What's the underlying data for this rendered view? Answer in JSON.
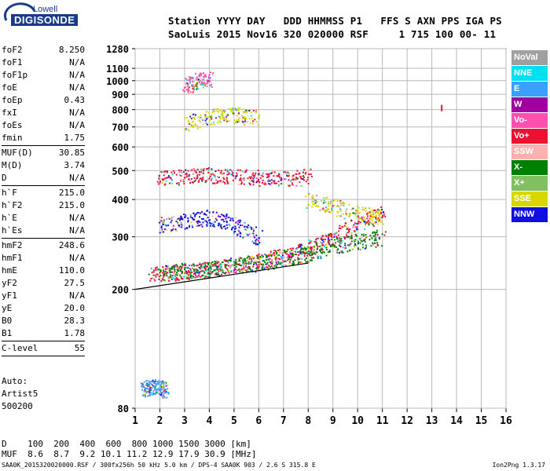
{
  "logo": {
    "top": "Lowell",
    "main": "DIGISONDE"
  },
  "header": {
    "line1": "Station YYYY DAY   DDD HHMMSS P1   FFS S AXN PPS IGA PS",
    "line2": "SaoLuis 2015 Nov16 320 020000 RSF     1 715 100 00- 11"
  },
  "params": [
    {
      "name": "foF2",
      "value": "8.250"
    },
    {
      "name": "foF1",
      "value": "N/A"
    },
    {
      "name": "foF1p",
      "value": "N/A"
    },
    {
      "name": "foE",
      "value": "N/A"
    },
    {
      "name": "foEp",
      "value": "0.43"
    },
    {
      "name": "fxI",
      "value": "N/A"
    },
    {
      "name": "foEs",
      "value": "N/A"
    },
    {
      "name": "fmin",
      "value": "1.75"
    },
    {
      "sep": true
    },
    {
      "name": "MUF(D)",
      "value": "30.85"
    },
    {
      "name": "M(D)",
      "value": "3.74"
    },
    {
      "name": "D",
      "value": "N/A"
    },
    {
      "sep": true
    },
    {
      "name": "h`F",
      "value": "215.0"
    },
    {
      "name": "h`F2",
      "value": "215.0"
    },
    {
      "name": "h`E",
      "value": "N/A"
    },
    {
      "name": "h`Es",
      "value": "N/A"
    },
    {
      "sep": true
    },
    {
      "name": "hmF2",
      "value": "248.6"
    },
    {
      "name": "hmF1",
      "value": "N/A"
    },
    {
      "name": "hmE",
      "value": "110.0"
    },
    {
      "name": "yF2",
      "value": "27.5"
    },
    {
      "name": "yF1",
      "value": "N/A"
    },
    {
      "name": "yE",
      "value": "20.0"
    },
    {
      "name": "B0",
      "value": "28.3"
    },
    {
      "name": "B1",
      "value": "1.78"
    },
    {
      "sep": true
    },
    {
      "name": "C-level",
      "value": "55"
    },
    {
      "sep": true
    }
  ],
  "auto": {
    "line1": "Auto:",
    "line2": "Artist5",
    "line3": "500200"
  },
  "bottom": {
    "d_line": "D    100  200  400  600  800 1000 1500 3000 [km]",
    "muf_line": "MUF  8.6  8.7  9.2 10.1 11.2 12.9 17.9 30.9 [MHz]",
    "file_line": "SAA0K_2015320020000.RSF / 300fx256h 50 kHz 5.0 km / DPS-4 SAA0K 903 / 2.6 S 315.8 E",
    "version": "Ion2Png 1.3.17"
  },
  "legend": [
    {
      "label": "NoVal",
      "color": "#a0a0a0"
    },
    {
      "label": "NNE",
      "color": "#00e0f0"
    },
    {
      "label": "E",
      "color": "#3aa0ff"
    },
    {
      "label": "W",
      "color": "#a000a0"
    },
    {
      "label": "Vo-",
      "color": "#ff50b0"
    },
    {
      "label": "Vo+",
      "color": "#ee1030"
    },
    {
      "label": "SSW",
      "color": "#ffb0b0"
    },
    {
      "label": "X-",
      "color": "#008000"
    },
    {
      "label": "X+",
      "color": "#80c060"
    },
    {
      "label": "SSE",
      "color": "#d8d800"
    },
    {
      "label": "NNW",
      "color": "#1010e0"
    }
  ],
  "chart_data": {
    "type": "scatter",
    "title": "",
    "xlabel": "",
    "ylabel": "",
    "x_ticks": [
      "1",
      "2",
      "3",
      "4",
      "5",
      "6",
      "7",
      "8",
      "9",
      "10",
      "11",
      "12",
      "13",
      "14",
      "15",
      "16"
    ],
    "y_ticks": [
      "80",
      "200",
      "300",
      "400",
      "500",
      "600",
      "700",
      "800",
      "900",
      "1000",
      "1100",
      "1280"
    ],
    "xlim": [
      1,
      16
    ],
    "ylim": [
      80,
      1280
    ],
    "y_scale": "log",
    "grid": true,
    "legend_position": "right",
    "clusters": [
      {
        "name": "F-trace O",
        "color": "#ee1030",
        "x": [
          1.6,
          2.5,
          3.5,
          4.5,
          5.5,
          6.5,
          7.5,
          8.2,
          9.0,
          10.0,
          11.0
        ],
        "y": [
          225,
          228,
          232,
          238,
          245,
          255,
          268,
          280,
          300,
          330,
          360
        ]
      },
      {
        "name": "F-trace X",
        "color": "#008000",
        "x": [
          2.0,
          3.0,
          4.0,
          5.0,
          6.0,
          7.0,
          8.0,
          9.0,
          10.0,
          11.0
        ],
        "y": [
          230,
          232,
          235,
          240,
          245,
          255,
          265,
          280,
          290,
          300
        ]
      },
      {
        "name": "spread 350",
        "color": "#1010e0",
        "x": [
          2.0,
          3.0,
          4.0,
          5.0,
          6.0
        ],
        "y": [
          330,
          340,
          350,
          330,
          300
        ]
      },
      {
        "name": "multi-hop 480",
        "color": "#ee1030",
        "x": [
          1.9,
          3.0,
          4.0,
          5.0,
          6.0,
          7.0,
          8.0
        ],
        "y": [
          470,
          480,
          485,
          480,
          475,
          470,
          480
        ]
      },
      {
        "name": "upper 750",
        "color": "#d8d800",
        "x": [
          3.0,
          4.0,
          5.0,
          6.0
        ],
        "y": [
          720,
          760,
          770,
          750
        ]
      },
      {
        "name": "upper 1000",
        "color": "#ff50b0",
        "x": [
          3.0,
          3.5,
          4.0
        ],
        "y": [
          960,
          1000,
          1020
        ]
      },
      {
        "name": "high freq",
        "color": "#d8d800",
        "x": [
          8.0,
          9.0,
          10.0,
          11.0
        ],
        "y": [
          400,
          380,
          360,
          350
        ]
      },
      {
        "name": "low 90",
        "color": "#3aa0ff",
        "x": [
          1.3,
          1.6,
          2.0,
          2.2
        ],
        "y": [
          92,
          95,
          95,
          92
        ]
      }
    ],
    "marker_line": {
      "x": 13.4,
      "y": [
        790,
        830
      ],
      "color": "#ee1030"
    },
    "bottom_curve": {
      "x": [
        1.0,
        8.0
      ],
      "y": [
        200,
        245
      ]
    }
  }
}
